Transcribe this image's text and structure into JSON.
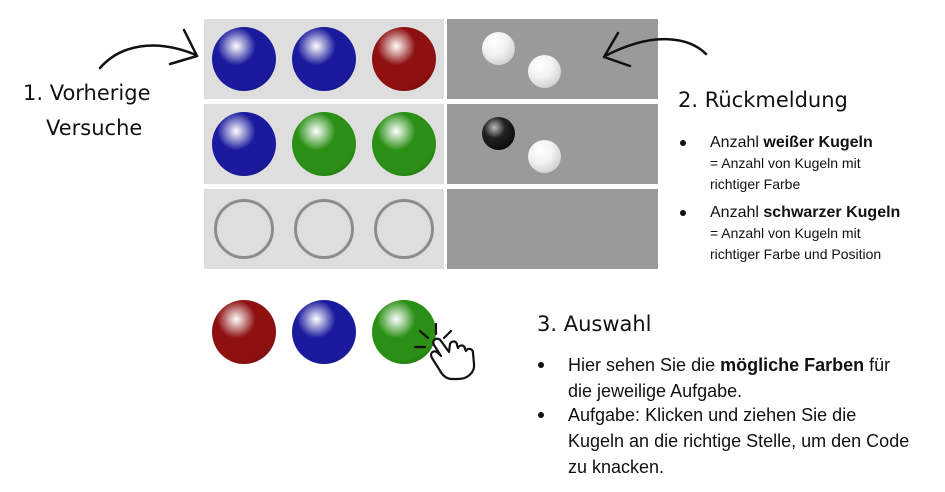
{
  "colors": {
    "blue": "#1a1a9e",
    "red": "#8e1010",
    "green": "#2a8f14",
    "guess_bg": "#dedede",
    "feedback_bg": "#9a9a9a"
  },
  "board": {
    "rows": [
      {
        "balls": [
          "blue",
          "blue",
          "red"
        ],
        "pegs": [
          "white",
          "white"
        ]
      },
      {
        "balls": [
          "blue",
          "green",
          "green"
        ],
        "pegs": [
          "black",
          "white"
        ]
      },
      {
        "balls": [
          "empty",
          "empty",
          "empty"
        ],
        "pegs": []
      }
    ]
  },
  "choices": [
    "red",
    "blue",
    "green"
  ],
  "labels": {
    "previous_line1": "1. Vorherige",
    "previous_line2": "Versuche",
    "feedback_title": "2. Rückmeldung",
    "choice_title": "3. Auswahl"
  },
  "feedback_bullets": {
    "b1_pre": "Anzahl ",
    "b1_bold": "weißer Kugeln",
    "b1_line2": "= Anzahl von Kugeln mit",
    "b1_line3": "richtiger Farbe",
    "b2_pre": "Anzahl ",
    "b2_bold": "schwarzer Kugeln",
    "b2_line2": "= Anzahl von Kugeln mit",
    "b2_line3": "richtiger Farbe und Position"
  },
  "choice_bullets": {
    "b1_pre": "Hier sehen Sie die ",
    "b1_bold": "mögliche Farben",
    "b1_post": " für",
    "b1_line2": "die jeweilige Aufgabe.",
    "b2_line1": "Aufgabe: Klicken und ziehen Sie die",
    "b2_line2": "Kugeln an die richtige Stelle, um den Code",
    "b2_line3": "zu knacken."
  },
  "icons": {
    "arrow_left": "curved-arrow-icon",
    "arrow_right": "curved-arrow-icon",
    "hand": "pointing-hand-icon"
  }
}
